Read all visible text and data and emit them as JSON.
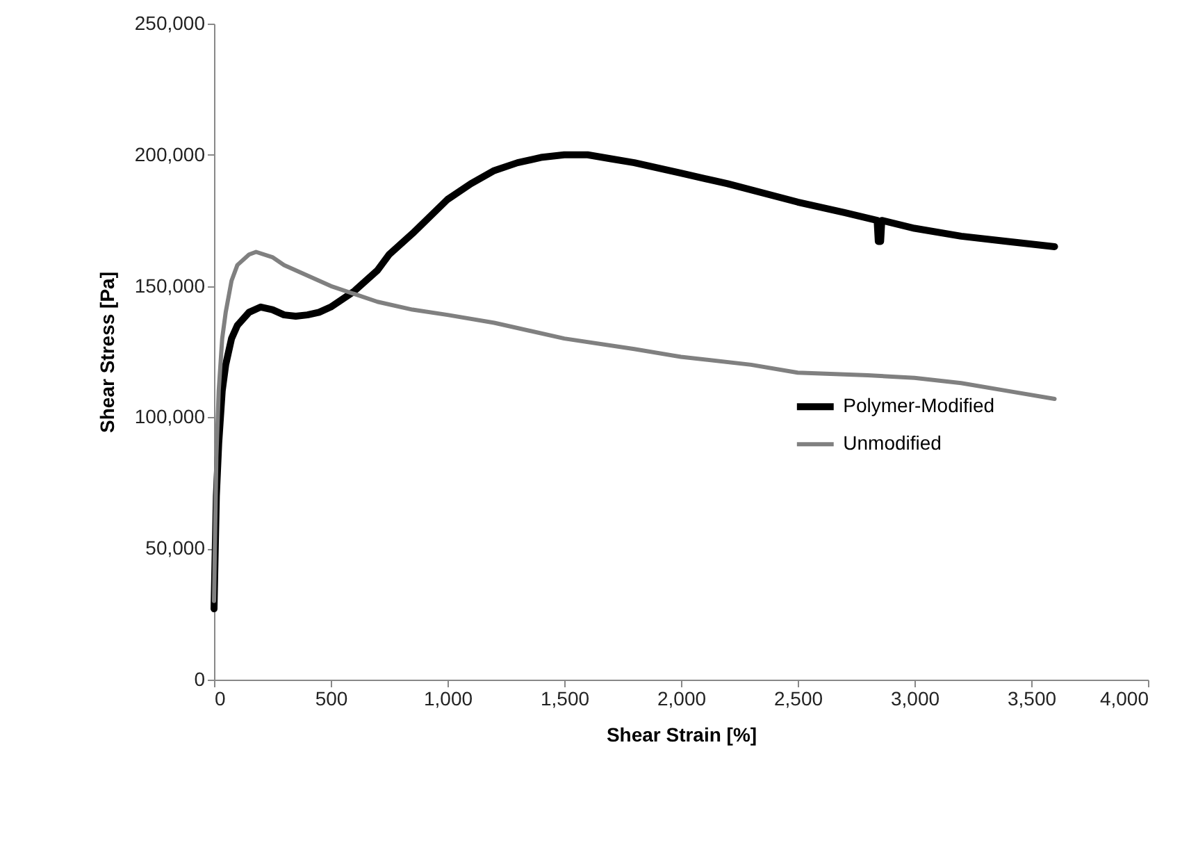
{
  "chart_data": {
    "type": "line",
    "xlabel": "Shear Strain [%]",
    "ylabel": "Shear Stress [Pa]",
    "xlim": [
      0,
      4000
    ],
    "xticks": [
      0,
      500,
      {
        "value": 1000,
        "label": "1,000"
      },
      {
        "value": 1500,
        "label": "1,500"
      },
      {
        "value": 2000,
        "label": "2,000"
      },
      {
        "value": 2500,
        "label": "2,500"
      },
      {
        "value": 3000,
        "label": "3,000"
      },
      {
        "value": 3500,
        "label": "3,500"
      },
      {
        "value": 4000,
        "label": "4,000"
      }
    ],
    "ylim": [
      0,
      250000
    ],
    "yticks": [
      0,
      {
        "value": 50000,
        "label": "50,000"
      },
      {
        "value": 100000,
        "label": "100,000"
      },
      {
        "value": 150000,
        "label": "150,000"
      },
      {
        "value": 200000,
        "label": "200,000"
      },
      {
        "value": 250000,
        "label": "250,000"
      }
    ],
    "grid": false,
    "legend": "right",
    "marker": "none",
    "line_style": "solid",
    "series": [
      {
        "name": "Polymer-Modified",
        "color": "#000000",
        "x": [
          0,
          10,
          20,
          35,
          50,
          75,
          100,
          150,
          200,
          250,
          300,
          350,
          400,
          450,
          500,
          600,
          700,
          750,
          850,
          1000,
          1100,
          1200,
          1300,
          1400,
          1500,
          1600,
          1700,
          1800,
          2000,
          2200,
          2500,
          2700,
          2840,
          2845,
          2855,
          2860,
          3000,
          3200,
          3400,
          3600
        ],
        "values": [
          27000,
          70000,
          90000,
          110000,
          120000,
          130000,
          135000,
          140000,
          142000,
          141000,
          139000,
          138500,
          139000,
          140000,
          142000,
          148000,
          156000,
          162000,
          170000,
          183000,
          189000,
          194000,
          197000,
          199000,
          200000,
          200000,
          198500,
          197000,
          193000,
          189000,
          182000,
          178000,
          175000,
          167000,
          167000,
          175000,
          172000,
          169000,
          167000,
          165000
        ]
      },
      {
        "name": "Unmodified",
        "color": "#808080",
        "x": [
          0,
          10,
          20,
          35,
          50,
          75,
          100,
          150,
          180,
          250,
          300,
          400,
          500,
          600,
          700,
          850,
          1000,
          1200,
          1500,
          1800,
          2000,
          2300,
          2500,
          2800,
          3000,
          3200,
          3400,
          3600
        ],
        "values": [
          30000,
          85000,
          110000,
          130000,
          140000,
          152000,
          158000,
          162000,
          163000,
          161000,
          158000,
          154000,
          150000,
          147000,
          144000,
          141000,
          139000,
          136000,
          130000,
          126000,
          123000,
          120000,
          117000,
          116000,
          115000,
          113000,
          110000,
          107000
        ]
      }
    ]
  }
}
